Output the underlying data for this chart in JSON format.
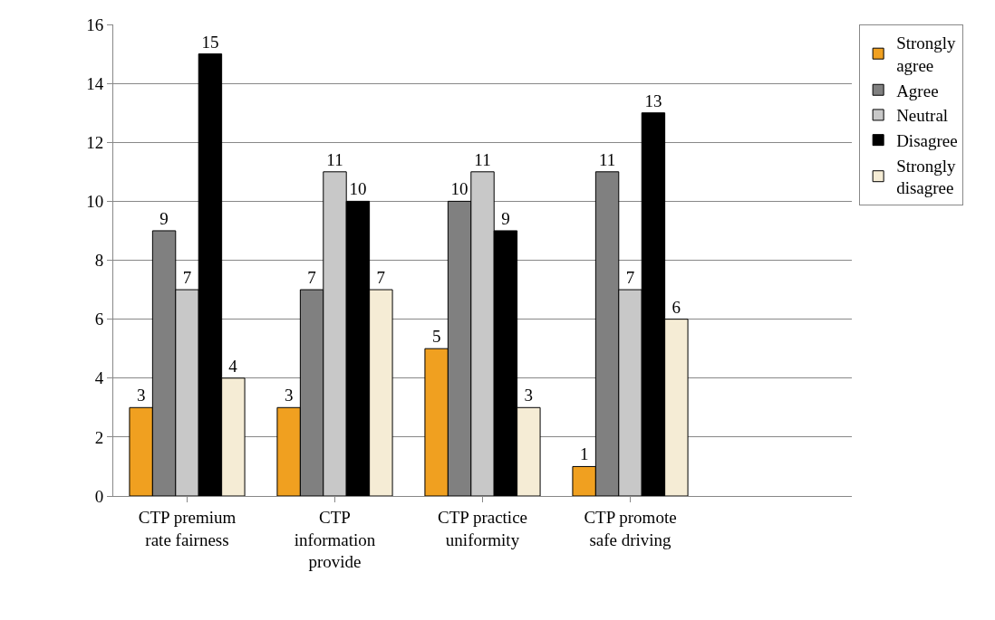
{
  "chart_data": {
    "type": "bar",
    "categories": [
      "CTP premium rate fairness",
      "CTP information provide",
      "CTP practice uniformity",
      "CTP promote safe driving",
      null
    ],
    "series": [
      {
        "name": "Strongly agree",
        "color": "#f0a020",
        "values": [
          3,
          3,
          5,
          1,
          null
        ]
      },
      {
        "name": "Agree",
        "color": "#808080",
        "values": [
          9,
          7,
          10,
          11,
          null
        ]
      },
      {
        "name": "Neutral",
        "color": "#c8c8c8",
        "values": [
          7,
          11,
          11,
          7,
          null
        ]
      },
      {
        "name": "Disagree",
        "color": "#000000",
        "values": [
          15,
          10,
          9,
          13,
          null
        ]
      },
      {
        "name": "Strongly disagree",
        "color": "#f5ecd5",
        "values": [
          4,
          7,
          3,
          6,
          null
        ]
      }
    ],
    "ylim": [
      0,
      16
    ],
    "yticks": [
      0,
      2,
      4,
      6,
      8,
      10,
      12,
      14,
      16
    ],
    "grid": "y",
    "legend": "right",
    "data_labels": true
  }
}
